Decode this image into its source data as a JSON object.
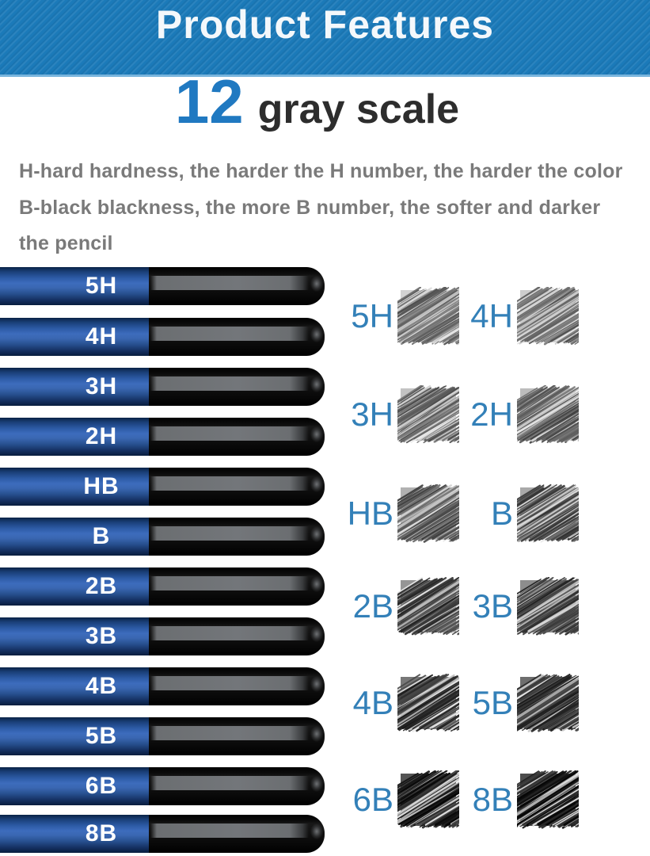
{
  "header": {
    "title": "Product Features",
    "bg_color": "#1b7ab9",
    "text_color": "#f4f8fb"
  },
  "title": {
    "number": "12",
    "number_color": "#2079c1",
    "text": "gray scale",
    "text_color": "#2d2d2d"
  },
  "description": {
    "color": "#7a7a7a",
    "lines": [
      "H-hard hardness, the harder the H number, the harder the color",
      "B-black blackness, the more B number, the softer and darker",
      "the pencil"
    ]
  },
  "pencils": {
    "label_color": "#ffffff",
    "body_blue": "#3d6cbd",
    "grades": [
      "5H",
      "4H",
      "3H",
      "2H",
      "HB",
      "B",
      "2B",
      "3B",
      "4B",
      "5B",
      "6B",
      "8B"
    ]
  },
  "swatch_grid": {
    "label_color": "#3380b8",
    "pairs": [
      [
        "5H",
        "4H"
      ],
      [
        "3H",
        "2H"
      ],
      [
        "HB",
        "B"
      ],
      [
        "2B",
        "3B"
      ],
      [
        "4B",
        "5B"
      ],
      [
        "6B",
        "8B"
      ]
    ]
  }
}
